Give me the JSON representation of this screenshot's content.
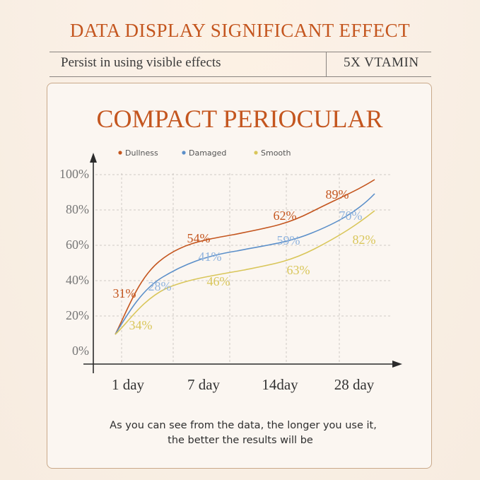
{
  "header": {
    "title": "DATA DISPLAY SIGNIFICANT EFFECT",
    "subtitle": "Persist in using visible effects",
    "tag": "5X VTAMIN"
  },
  "footer": {
    "line1": "As you can see from the data, the longer you use it,",
    "line2": "the better the results will be"
  },
  "colors": {
    "accent": "#c4561f",
    "dullness": "#c4561f",
    "damaged": "#5b8fc9",
    "smooth": "#d9c65a"
  },
  "chart_data": {
    "type": "line",
    "title": "COMPACT PERIOCULAR",
    "categories": [
      "1 day",
      "7 day",
      "14day",
      "28 day"
    ],
    "y_ticks": [
      "100%",
      "80%",
      "60%",
      "40%",
      "20%",
      "0%"
    ],
    "ylim": [
      0,
      100
    ],
    "legend_position": "top",
    "grid": true,
    "series": [
      {
        "name": "Dullness",
        "color": "#c4561f",
        "label_color": "#c4561f",
        "labels": [
          "31%",
          "54%",
          "62%",
          "89%"
        ]
      },
      {
        "name": "Damaged",
        "color": "#5b8fc9",
        "label_color": "#8fb3de",
        "labels": [
          "28%",
          "41%",
          "59%",
          "70%"
        ]
      },
      {
        "name": "Smooth",
        "color": "#d9c65a",
        "label_color": "#d9c65a",
        "labels": [
          "34%",
          "46%",
          "63%",
          "82%"
        ]
      }
    ]
  }
}
